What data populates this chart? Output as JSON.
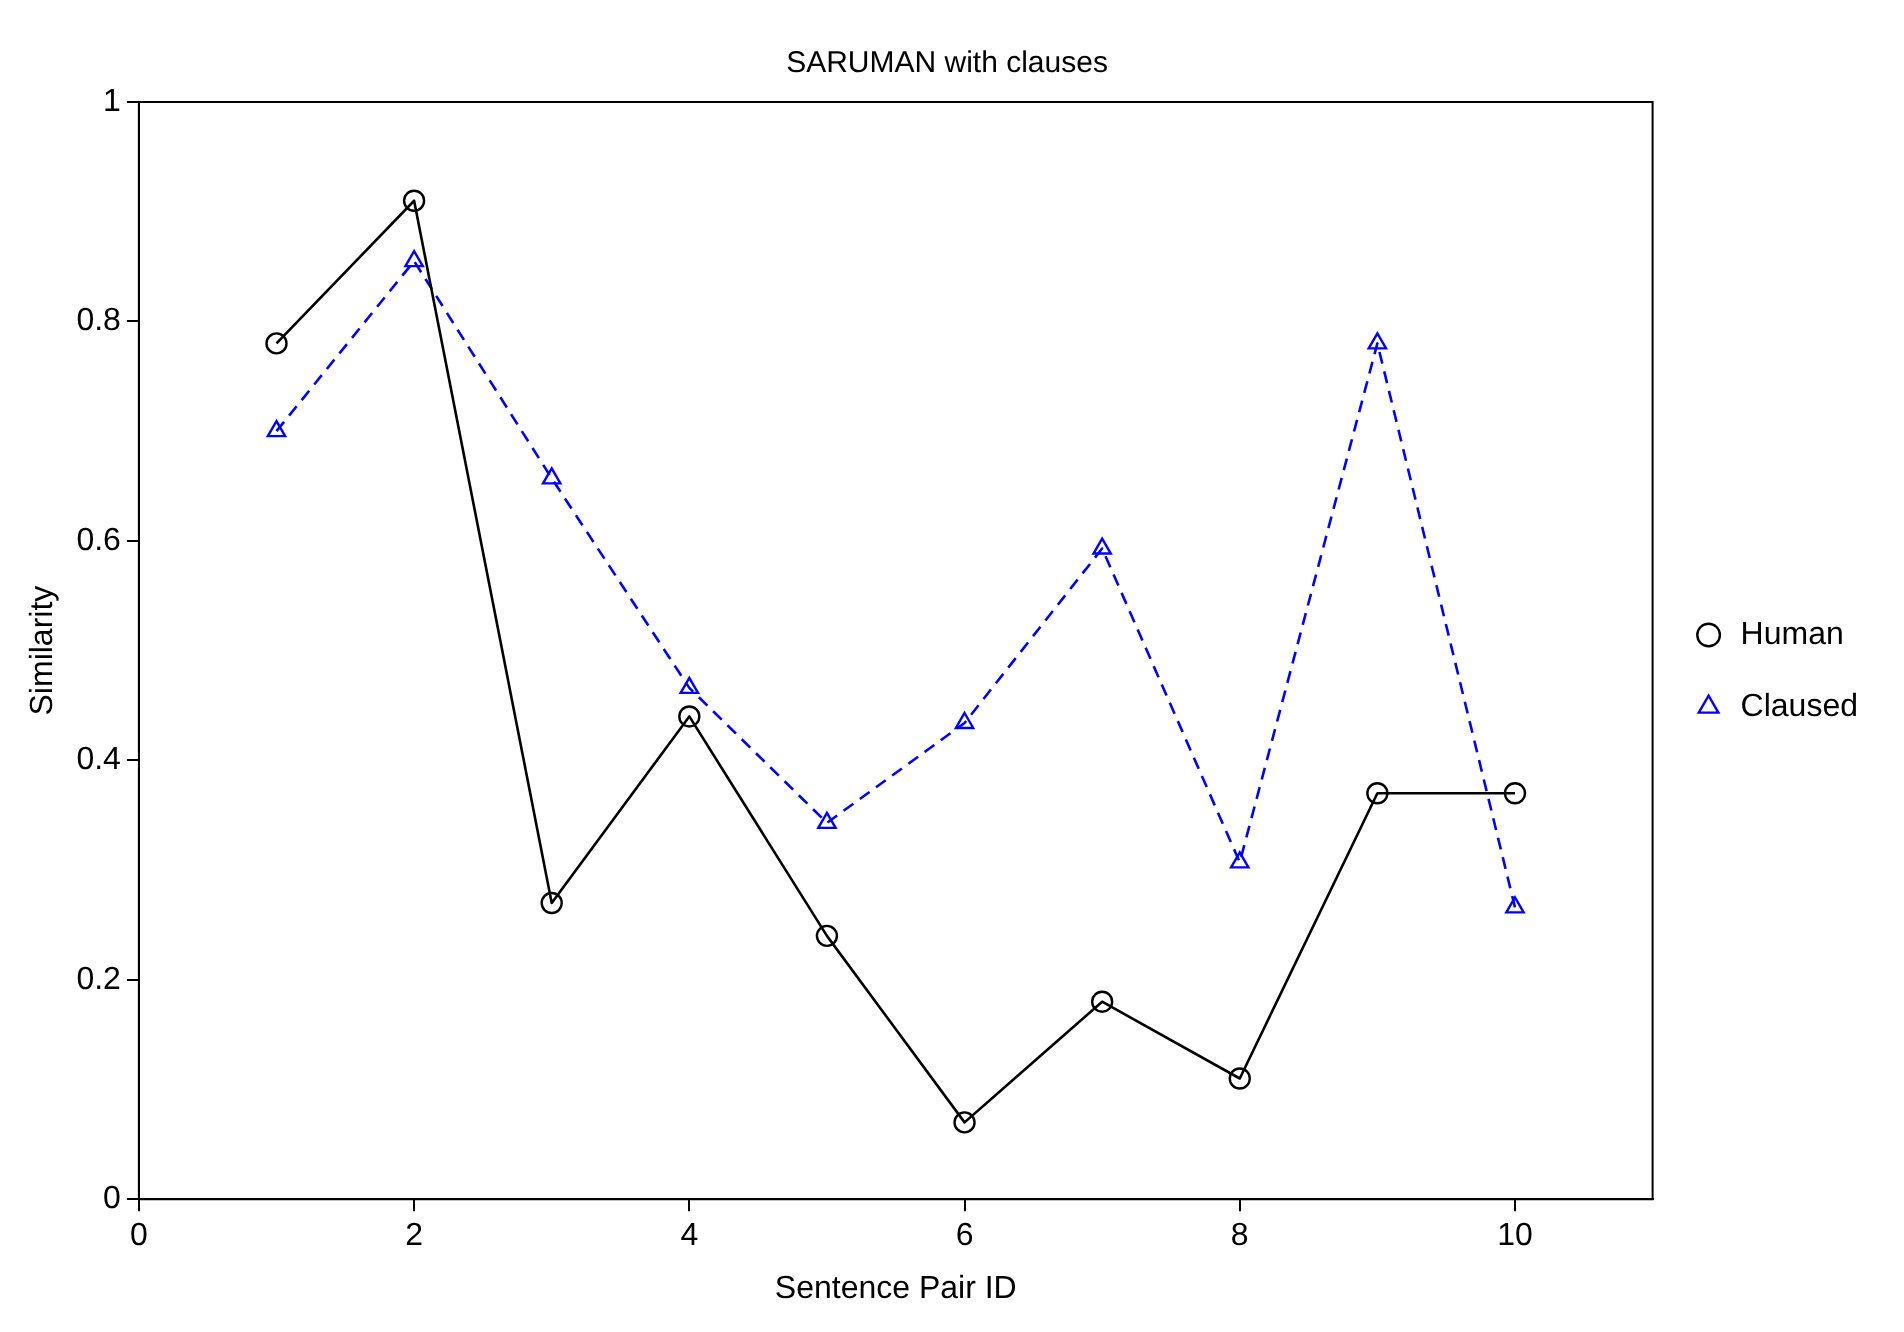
{
  "chart_data": {
    "type": "line",
    "title": "SARUMAN with clauses",
    "xlabel": "Sentence Pair ID",
    "ylabel": "Similarity",
    "x": [
      1,
      2,
      3,
      4,
      5,
      6,
      7,
      8,
      9,
      10
    ],
    "series": [
      {
        "name": "Human",
        "color": "#000000",
        "values": [
          0.78,
          0.91,
          0.27,
          0.44,
          0.24,
          0.07,
          0.18,
          0.11,
          0.37,
          0.37
        ],
        "marker": "circle",
        "line_style": "solid"
      },
      {
        "name": "Claused",
        "color": "#0000ff",
        "values": [
          0.7,
          0.855,
          0.657,
          0.466,
          0.343,
          0.434,
          0.593,
          0.307,
          0.78,
          0.266
        ],
        "marker": "triangle",
        "line_style": "dashed"
      }
    ],
    "xlim": [
      0,
      11
    ],
    "xticks": [
      0,
      2,
      4,
      6,
      8,
      10
    ],
    "ylim": [
      0,
      1
    ],
    "yticks": [
      0,
      0.2,
      0.4,
      0.6,
      0.8,
      1
    ],
    "grid": false,
    "legend": "right"
  }
}
